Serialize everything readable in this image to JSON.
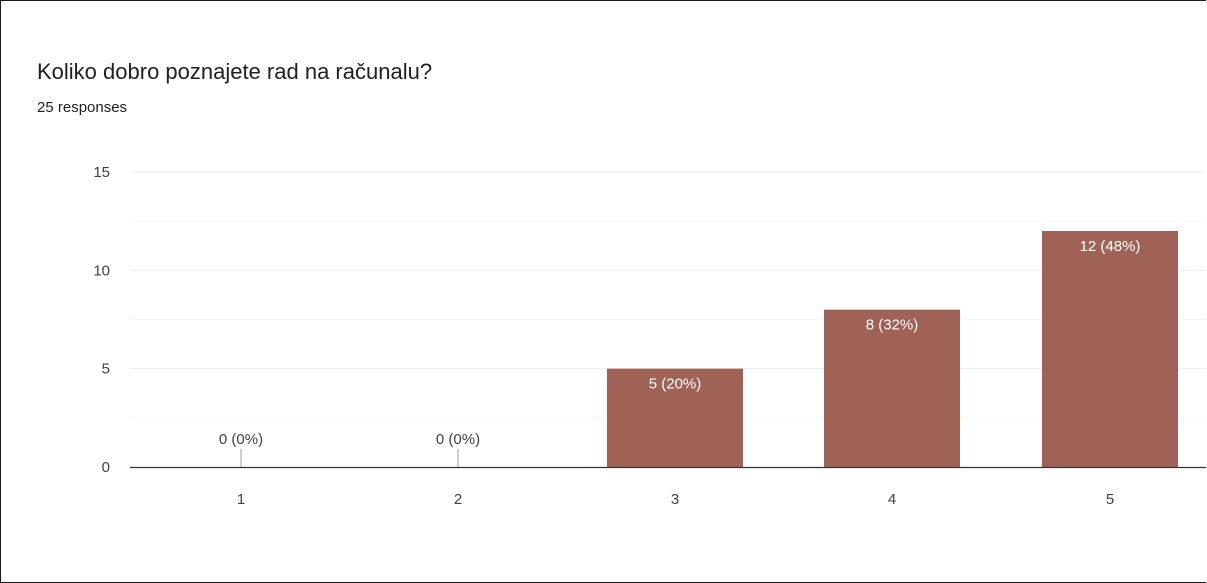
{
  "colors": {
    "bar": "#a06257",
    "grid_major": "#ebebeb",
    "grid_minor": "#f5f5f5",
    "axis": "#333333",
    "label_inside": "#ffffff",
    "label_outside": "#3c4043"
  },
  "chart_data": {
    "type": "bar",
    "title": "Koliko dobro poznajete rad na računalu?",
    "subtitle": "25 responses",
    "categories": [
      "1",
      "2",
      "3",
      "4",
      "5"
    ],
    "values": [
      0,
      0,
      5,
      8,
      12
    ],
    "data_labels": [
      "0 (0%)",
      "0 (0%)",
      "5 (20%)",
      "8 (32%)",
      "12 (48%)"
    ],
    "ylim": [
      0,
      15
    ],
    "yticks": [
      0,
      5,
      10,
      15
    ],
    "ytick_labels": [
      "0",
      "5",
      "10",
      "15"
    ],
    "grid": true,
    "legend": "none"
  }
}
